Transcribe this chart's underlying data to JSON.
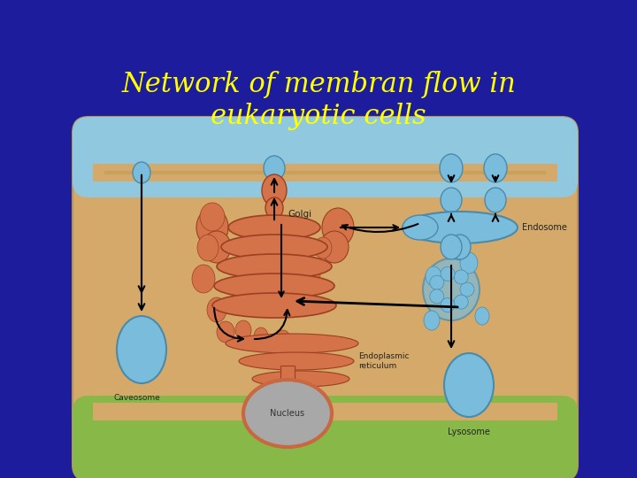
{
  "title_line1": "Network of membran flow in",
  "title_line2": "eukaryotic cells",
  "title_color": "#FFFF00",
  "title_fontsize": 22,
  "bg_color": "#1C1C9C",
  "fig_width": 7.2,
  "fig_height": 5.4,
  "dpi": 100,
  "box_bg": "#D4A96A",
  "top_band_color": "#90C8E0",
  "bottom_band_color": "#80B050",
  "golgi_color": "#D4724A",
  "er_color": "#C86840",
  "nucleus_color": "#A8A8A8",
  "nucleus_border": "#C86840",
  "blue_vesicle": "#7ABCDC",
  "blue_vesicle_edge": "#4A8AAA",
  "orange_vesicle": "#D4724A",
  "orange_vesicle_edge": "#9B4020",
  "endosome_label": "Endosome",
  "golgi_label": "Golgi",
  "nucleus_label": "Nucleus",
  "er_label": "Endoplasmic\nreticulum",
  "lysosome_label": "Lysosome",
  "caveosome_label": "Caveosome"
}
